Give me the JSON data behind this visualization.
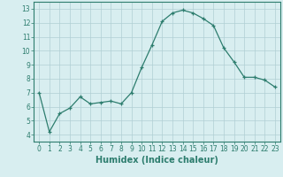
{
  "x": [
    0,
    1,
    2,
    3,
    4,
    5,
    6,
    7,
    8,
    9,
    10,
    11,
    12,
    13,
    14,
    15,
    16,
    17,
    18,
    19,
    20,
    21,
    22,
    23
  ],
  "y": [
    7.0,
    4.2,
    5.5,
    5.9,
    6.7,
    6.2,
    6.3,
    6.4,
    6.2,
    7.0,
    8.8,
    10.4,
    12.1,
    12.7,
    12.9,
    12.7,
    12.3,
    11.8,
    10.2,
    9.2,
    8.1,
    8.1,
    7.9,
    7.4
  ],
  "xlabel": "Humidex (Indice chaleur)",
  "ylim": [
    3.5,
    13.5
  ],
  "xlim": [
    -0.5,
    23.5
  ],
  "yticks": [
    4,
    5,
    6,
    7,
    8,
    9,
    10,
    11,
    12,
    13
  ],
  "xticks": [
    0,
    1,
    2,
    3,
    4,
    5,
    6,
    7,
    8,
    9,
    10,
    11,
    12,
    13,
    14,
    15,
    16,
    17,
    18,
    19,
    20,
    21,
    22,
    23
  ],
  "line_color": "#2d7d6e",
  "marker_color": "#2d7d6e",
  "bg_color": "#d8eef0",
  "grid_color": "#b0cfd4",
  "tick_fontsize": 5.5,
  "xlabel_fontsize": 7.0,
  "linewidth": 0.9,
  "markersize": 3.5
}
